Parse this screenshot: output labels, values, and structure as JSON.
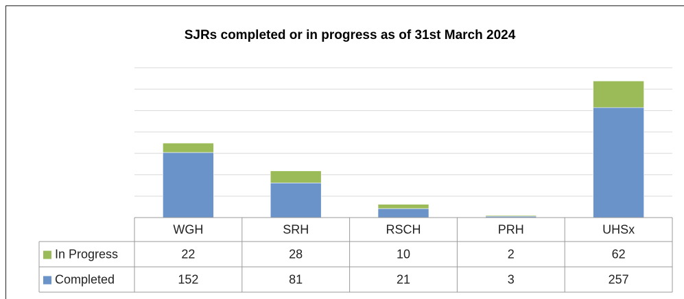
{
  "chart_data": {
    "type": "stacked_bar",
    "title": "SJRs completed or in progress as of 31st March 2024",
    "categories": [
      "WGH",
      "SRH",
      "RSCH",
      "PRH",
      "UHSx"
    ],
    "series": [
      {
        "name": "In Progress",
        "color": "#9bbb59",
        "values": [
          22,
          28,
          10,
          2,
          62
        ]
      },
      {
        "name": "Completed",
        "color": "#6a93c9",
        "values": [
          152,
          81,
          21,
          3,
          257
        ]
      }
    ],
    "ylim": [
      0,
      350
    ],
    "yticks": [
      0,
      50,
      100,
      150,
      200,
      250,
      300,
      350
    ],
    "grid": true
  }
}
